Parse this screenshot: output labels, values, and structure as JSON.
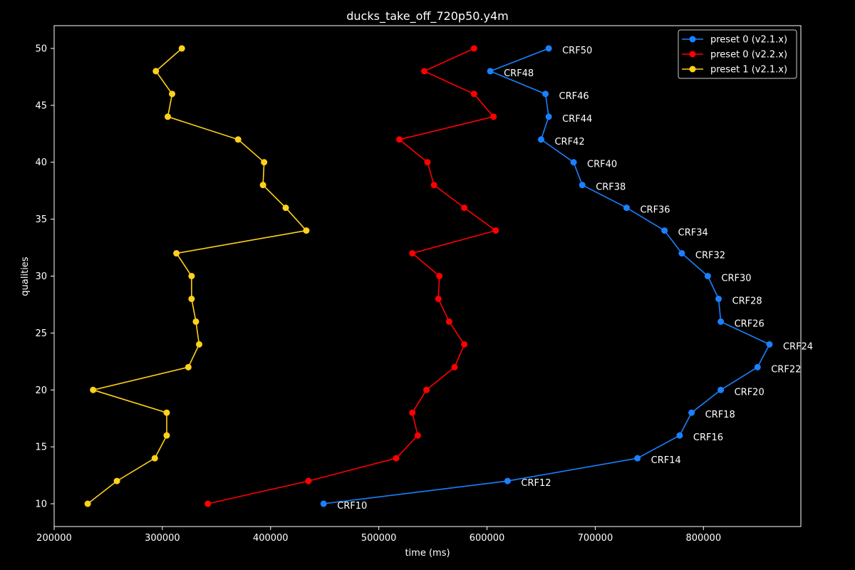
{
  "chart_data": {
    "type": "line",
    "title": "ducks_take_off_720p50.y4m",
    "xlabel": "time (ms)",
    "ylabel": "qualities",
    "xlim": [
      200000,
      890000
    ],
    "ylim": [
      8,
      52
    ],
    "xticks": [
      200000,
      300000,
      400000,
      500000,
      600000,
      700000,
      800000
    ],
    "yticks": [
      10,
      15,
      20,
      25,
      30,
      35,
      40,
      45,
      50
    ],
    "grid": false,
    "legend_position": "top-right",
    "y": [
      10,
      12,
      14,
      16,
      18,
      20,
      22,
      24,
      26,
      28,
      30,
      32,
      34,
      36,
      38,
      40,
      42,
      44,
      46,
      48,
      50
    ],
    "series": [
      {
        "name": "preset 0 (v2.1.x)",
        "color": "#1a80ff",
        "x": [
          449000,
          619000,
          739000,
          778000,
          789000,
          816000,
          850000,
          861000,
          816000,
          814000,
          804000,
          780000,
          764000,
          729000,
          688000,
          680000,
          650000,
          657000,
          654000,
          603000,
          657000
        ],
        "labels": [
          "CRF10",
          "CRF12",
          "CRF14",
          "CRF16",
          "CRF18",
          "CRF20",
          "CRF22",
          "CRF24",
          "CRF26",
          "CRF28",
          "CRF30",
          "CRF32",
          "CRF34",
          "CRF36",
          "CRF38",
          "CRF40",
          "CRF42",
          "CRF44",
          "CRF46",
          "CRF48",
          "CRF50"
        ]
      },
      {
        "name": "preset 0 (v2.2.x)",
        "color": "#ff0000",
        "x": [
          342000,
          435000,
          516000,
          536000,
          531000,
          544000,
          570000,
          579000,
          565000,
          555000,
          556000,
          531000,
          608000,
          579000,
          551000,
          545000,
          519000,
          606000,
          588000,
          542000,
          588000
        ]
      },
      {
        "name": "preset 1 (v2.1.x)",
        "color": "#ffd21a",
        "x": [
          231000,
          258000,
          293000,
          304000,
          304000,
          236000,
          324000,
          334000,
          331000,
          327000,
          327000,
          313000,
          433000,
          414000,
          393000,
          394000,
          370000,
          305000,
          309000,
          294000,
          318000
        ]
      }
    ]
  }
}
